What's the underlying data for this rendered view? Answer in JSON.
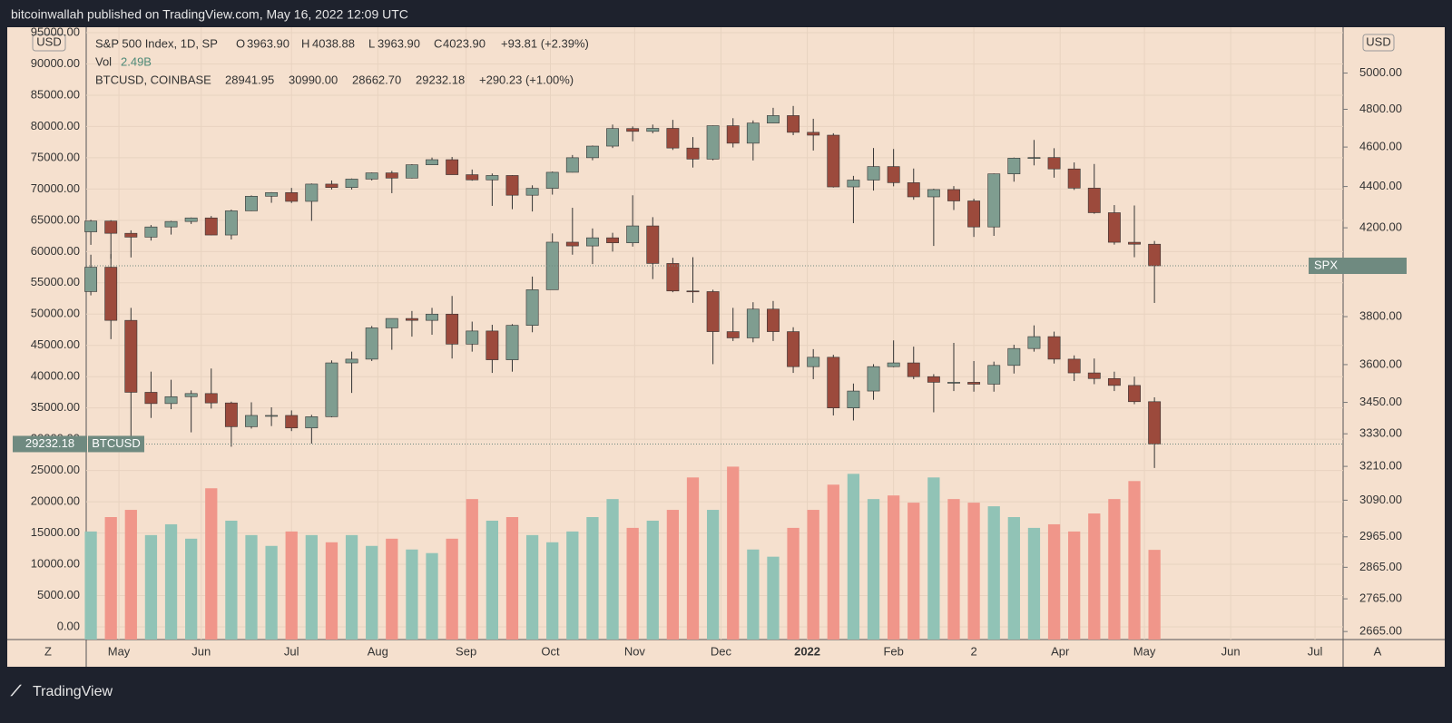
{
  "header": "bitcoinwallah published on TradingView.com, May 16, 2022 12:09 UTC",
  "footer": "TradingView",
  "ui": {
    "left_currency": "USD",
    "right_currency": "USD",
    "zoom": "Z",
    "auto": "A"
  },
  "chart_data": {
    "type": "candlestick",
    "legend": {
      "spx": {
        "title": "S&P 500 Index, 1D, SP",
        "fields": [
          {
            "key": "O",
            "value": "3963.90"
          },
          {
            "key": "H",
            "value": "4038.88"
          },
          {
            "key": "L",
            "value": "3963.90"
          },
          {
            "key": "C",
            "value": "4023.90"
          }
        ],
        "change": "+93.81 (+2.39%)"
      },
      "vol": {
        "name": "Vol",
        "value": "2.49B"
      },
      "btc": {
        "title": "BTCUSD, COINBASE",
        "values": [
          "28941.95",
          "30990.00",
          "28662.70",
          "29232.18"
        ],
        "change": "+290.23 (+1.00%)"
      }
    },
    "x": [
      0,
      1,
      2,
      3,
      4,
      5,
      6,
      7,
      8,
      9,
      10,
      11,
      12,
      13,
      14,
      15,
      16,
      17,
      18,
      19,
      20,
      21,
      22,
      23,
      24,
      25,
      26,
      27,
      28,
      29,
      30,
      31,
      32,
      33,
      34,
      35,
      36,
      37,
      38,
      39,
      40,
      41,
      42,
      43,
      44,
      45,
      46,
      47,
      48,
      49,
      50,
      51,
      52,
      53
    ],
    "xlim": [
      -0.23,
      62.4
    ],
    "xticks": [
      {
        "value": 1.4,
        "label": "May"
      },
      {
        "value": 5.5,
        "label": "Jun"
      },
      {
        "value": 10,
        "label": "Jul"
      },
      {
        "value": 14.3,
        "label": "Aug"
      },
      {
        "value": 18.7,
        "label": "Sep"
      },
      {
        "value": 22.9,
        "label": "Oct"
      },
      {
        "value": 27.1,
        "label": "Nov"
      },
      {
        "value": 31.4,
        "label": "Dec"
      },
      {
        "value": 35.7,
        "label": "2022"
      },
      {
        "value": 40,
        "label": "Feb"
      },
      {
        "value": 44,
        "label": "2"
      },
      {
        "value": 48.3,
        "label": "Apr"
      },
      {
        "value": 52.5,
        "label": "May"
      },
      {
        "value": 56.8,
        "label": "Jun"
      },
      {
        "value": 61,
        "label": "Jul"
      }
    ],
    "ylim": [
      -2030,
      95870
    ],
    "yticks": [
      {
        "value": 0,
        "label": "0.00"
      },
      {
        "value": 5000,
        "label": "5000.00"
      },
      {
        "value": 10000,
        "label": "10000.00"
      },
      {
        "value": 15000,
        "label": "15000.00"
      },
      {
        "value": 20000,
        "label": "20000.00"
      },
      {
        "value": 25000,
        "label": "25000.00"
      },
      {
        "value": 30000,
        "label": "30000.00"
      },
      {
        "value": 35000,
        "label": "35000.00"
      },
      {
        "value": 40000,
        "label": "40000.00"
      },
      {
        "value": 45000,
        "label": "45000.00"
      },
      {
        "value": 50000,
        "label": "50000.00"
      },
      {
        "value": 55000,
        "label": "55000.00"
      },
      {
        "value": 60000,
        "label": "60000.00"
      },
      {
        "value": 65000,
        "label": "65000.00"
      },
      {
        "value": 70000,
        "label": "70000.00"
      },
      {
        "value": 75000,
        "label": "75000.00"
      },
      {
        "value": 80000,
        "label": "80000.00"
      },
      {
        "value": 85000,
        "label": "85000.00"
      },
      {
        "value": 90000,
        "label": "90000.00"
      },
      {
        "value": 95000,
        "label": "95000.00"
      }
    ],
    "y2lim": [
      2641,
      5265
    ],
    "y2scale": "log",
    "y2ticks": [
      {
        "value": 2665,
        "label": "2665.00"
      },
      {
        "value": 2765,
        "label": "2765.00"
      },
      {
        "value": 2865,
        "label": "2865.00"
      },
      {
        "value": 2965,
        "label": "2965.00"
      },
      {
        "value": 3090,
        "label": "3090.00"
      },
      {
        "value": 3210,
        "label": "3210.00"
      },
      {
        "value": 3330,
        "label": "3330.00"
      },
      {
        "value": 3450,
        "label": "3450.00"
      },
      {
        "value": 3600,
        "label": "3600.00"
      },
      {
        "value": 3800,
        "label": "3800.00"
      },
      {
        "value": 4200,
        "label": "4200.00"
      },
      {
        "value": 4400,
        "label": "4400.00"
      },
      {
        "value": 4600,
        "label": "4600.00"
      },
      {
        "value": 4800,
        "label": "4800.00"
      },
      {
        "value": 5000,
        "label": "5000.00"
      }
    ],
    "grid": true,
    "up_color": "#7f9d90",
    "down_color": "#9c4a3c",
    "series": [
      {
        "name": "SPX",
        "axis": "y2",
        "ohlc": [
          [
            4181,
            4238,
            4120,
            4232
          ],
          [
            4232,
            4236,
            4056,
            4174
          ],
          [
            4174,
            4188,
            4062,
            4156
          ],
          [
            4156,
            4213,
            4140,
            4204
          ],
          [
            4204,
            4233,
            4168,
            4230
          ],
          [
            4230,
            4249,
            4218,
            4247
          ],
          [
            4247,
            4256,
            4165,
            4166
          ],
          [
            4166,
            4287,
            4145,
            4281
          ],
          [
            4281,
            4356,
            4280,
            4352
          ],
          [
            4352,
            4372,
            4320,
            4370
          ],
          [
            4370,
            4393,
            4319,
            4327
          ],
          [
            4327,
            4415,
            4233,
            4412
          ],
          [
            4412,
            4430,
            4385,
            4395
          ],
          [
            4395,
            4440,
            4385,
            4437
          ],
          [
            4437,
            4470,
            4430,
            4468
          ],
          [
            4468,
            4478,
            4367,
            4442
          ],
          [
            4442,
            4512,
            4440,
            4509
          ],
          [
            4509,
            4546,
            4508,
            4535
          ],
          [
            4535,
            4549,
            4459,
            4459
          ],
          [
            4459,
            4485,
            4429,
            4433
          ],
          [
            4433,
            4465,
            4305,
            4455
          ],
          [
            4455,
            4457,
            4289,
            4357
          ],
          [
            4357,
            4406,
            4278,
            4391
          ],
          [
            4391,
            4475,
            4360,
            4471
          ],
          [
            4471,
            4559,
            4470,
            4545
          ],
          [
            4545,
            4608,
            4532,
            4605
          ],
          [
            4605,
            4718,
            4595,
            4697
          ],
          [
            4697,
            4708,
            4630,
            4682
          ],
          [
            4682,
            4718,
            4672,
            4698
          ],
          [
            4698,
            4743,
            4585,
            4595
          ],
          [
            4595,
            4652,
            4495,
            4538
          ],
          [
            4538,
            4713,
            4532,
            4712
          ],
          [
            4712,
            4752,
            4598,
            4620
          ],
          [
            4620,
            4740,
            4531,
            4726
          ],
          [
            4726,
            4808,
            4725,
            4766
          ],
          [
            4766,
            4818,
            4662,
            4677
          ],
          [
            4677,
            4749,
            4582,
            4662
          ],
          [
            4662,
            4672,
            4395,
            4398
          ],
          [
            4398,
            4453,
            4222,
            4432
          ],
          [
            4432,
            4595,
            4380,
            4500
          ],
          [
            4500,
            4590,
            4401,
            4419
          ],
          [
            4419,
            4490,
            4335,
            4349
          ],
          [
            4349,
            4389,
            4115,
            4385
          ],
          [
            4385,
            4402,
            4285,
            4329
          ],
          [
            4329,
            4340,
            4157,
            4204
          ],
          [
            4204,
            4465,
            4162,
            4463
          ],
          [
            4463,
            4546,
            4424,
            4543
          ],
          [
            4543,
            4637,
            4506,
            4546
          ],
          [
            4546,
            4594,
            4444,
            4488
          ],
          [
            4488,
            4521,
            4383,
            4392
          ],
          [
            4392,
            4513,
            4267,
            4272
          ],
          [
            4272,
            4309,
            4121,
            4132
          ],
          [
            4132,
            4307,
            4063,
            4123
          ],
          [
            4123,
            4138,
            3859,
            4023.9
          ]
        ]
      },
      {
        "name": "BTCUSD",
        "axis": "y",
        "ohlc": [
          [
            53600,
            59500,
            53000,
            57500
          ],
          [
            57500,
            59600,
            46000,
            49000
          ],
          [
            49000,
            51000,
            30000,
            37500
          ],
          [
            37500,
            40800,
            33400,
            35700
          ],
          [
            35700,
            39500,
            34800,
            36800
          ],
          [
            36800,
            37800,
            31100,
            37300
          ],
          [
            37300,
            41300,
            34900,
            35800
          ],
          [
            35800,
            36000,
            28800,
            32000
          ],
          [
            32000,
            35900,
            31700,
            33800
          ],
          [
            33800,
            35100,
            32100,
            33800
          ],
          [
            33800,
            34600,
            31300,
            31800
          ],
          [
            31800,
            33900,
            29300,
            33600
          ],
          [
            33600,
            42600,
            33500,
            42200
          ],
          [
            42200,
            44000,
            37400,
            42800
          ],
          [
            42800,
            48100,
            42500,
            47800
          ],
          [
            47800,
            49300,
            44300,
            49300
          ],
          [
            49300,
            50500,
            46400,
            49000
          ],
          [
            49000,
            51000,
            46700,
            50000
          ],
          [
            50000,
            52900,
            42900,
            45200
          ],
          [
            45200,
            48800,
            44000,
            47300
          ],
          [
            47300,
            48300,
            40600,
            42700
          ],
          [
            42700,
            48400,
            40800,
            48200
          ],
          [
            48200,
            56000,
            47100,
            53900
          ],
          [
            53900,
            62900,
            53900,
            61500
          ],
          [
            61500,
            67000,
            59500,
            60900
          ],
          [
            60900,
            63700,
            58000,
            62200
          ],
          [
            62200,
            63000,
            60000,
            61400
          ],
          [
            61400,
            69000,
            60800,
            64100
          ],
          [
            64100,
            65500,
            55600,
            58100
          ],
          [
            58100,
            59000,
            53500,
            53700
          ],
          [
            53700,
            59100,
            51800,
            53600
          ],
          [
            53600,
            53900,
            42000,
            47200
          ],
          [
            47200,
            51000,
            45700,
            46200
          ],
          [
            46200,
            51900,
            45500,
            50800
          ],
          [
            50800,
            52100,
            45700,
            47200
          ],
          [
            47200,
            47900,
            40600,
            41600
          ],
          [
            41600,
            44400,
            39600,
            43100
          ],
          [
            43100,
            43500,
            33800,
            35000
          ],
          [
            35000,
            38900,
            33000,
            37700
          ],
          [
            37700,
            42000,
            36300,
            41600
          ],
          [
            41600,
            45800,
            41500,
            42200
          ],
          [
            42200,
            44800,
            39600,
            40000
          ],
          [
            40000,
            40400,
            34300,
            39100
          ],
          [
            39100,
            45400,
            37700,
            39100
          ],
          [
            39100,
            42500,
            37600,
            38800
          ],
          [
            38800,
            42400,
            37600,
            41800
          ],
          [
            41800,
            45100,
            40500,
            44500
          ],
          [
            44500,
            48200,
            44000,
            46400
          ],
          [
            46400,
            47200,
            42100,
            42800
          ],
          [
            42800,
            43400,
            39300,
            40600
          ],
          [
            40600,
            42900,
            38800,
            39700
          ],
          [
            39700,
            40800,
            37700,
            38600
          ],
          [
            38600,
            40000,
            35600,
            36000
          ],
          [
            36000,
            36700,
            25400,
            29232.18
          ]
        ]
      }
    ],
    "volume": {
      "name": "Vol",
      "ylim": [
        0,
        17
      ],
      "up_color": "#91c3b6",
      "down_color": "#f0968a",
      "values": [
        3.0,
        3.4,
        3.6,
        2.9,
        3.2,
        2.8,
        4.2,
        3.3,
        2.9,
        2.6,
        3.0,
        2.9,
        2.7,
        2.9,
        2.6,
        2.8,
        2.5,
        2.4,
        2.8,
        3.9,
        3.3,
        3.4,
        2.9,
        2.7,
        3.0,
        3.4,
        3.9,
        3.1,
        3.3,
        3.6,
        4.5,
        3.6,
        4.8,
        2.5,
        2.3,
        3.1,
        3.6,
        4.3,
        4.6,
        3.9,
        4.0,
        3.8,
        4.5,
        3.9,
        3.8,
        3.7,
        3.4,
        3.1,
        3.2,
        3.0,
        3.5,
        3.9,
        4.4,
        2.49
      ]
    }
  }
}
